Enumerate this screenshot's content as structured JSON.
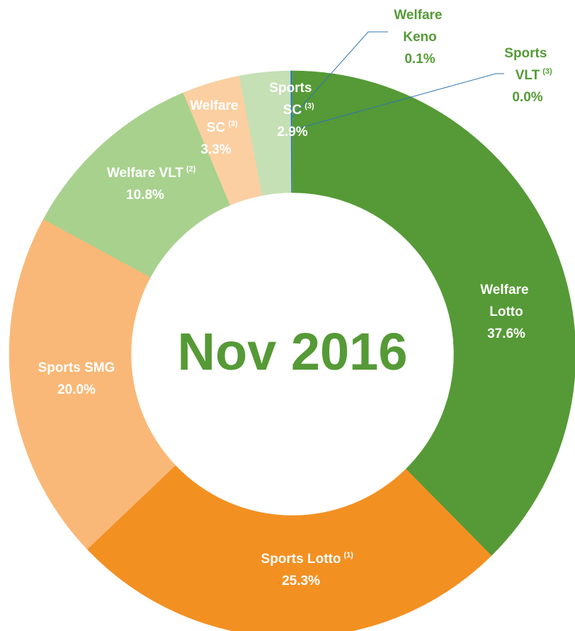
{
  "chart_data": {
    "type": "donut",
    "title": "Nov 2016",
    "categories": [
      "Welfare Lotto",
      "Sports Lotto",
      "Sports SMG",
      "Welfare VLT",
      "Welfare SC",
      "Sports SC",
      "Welfare Keno",
      "Sports VLT"
    ],
    "footnotes": [
      null,
      "(1)",
      null,
      "(2)",
      "(3)",
      "(3)",
      null,
      "(3)"
    ],
    "values": [
      37.6,
      25.3,
      20.0,
      10.8,
      3.3,
      2.9,
      0.1,
      0.0
    ],
    "value_labels": [
      "37.6%",
      "25.3%",
      "20.0%",
      "10.8%",
      "3.3%",
      "2.9%",
      "0.1%",
      "0.0%"
    ],
    "colors": [
      "#559a36",
      "#f39022",
      "#f9b877",
      "#a8d18e",
      "#fbcfa1",
      "#c5e0b4",
      "#2e75b6",
      "#70ad47"
    ]
  }
}
